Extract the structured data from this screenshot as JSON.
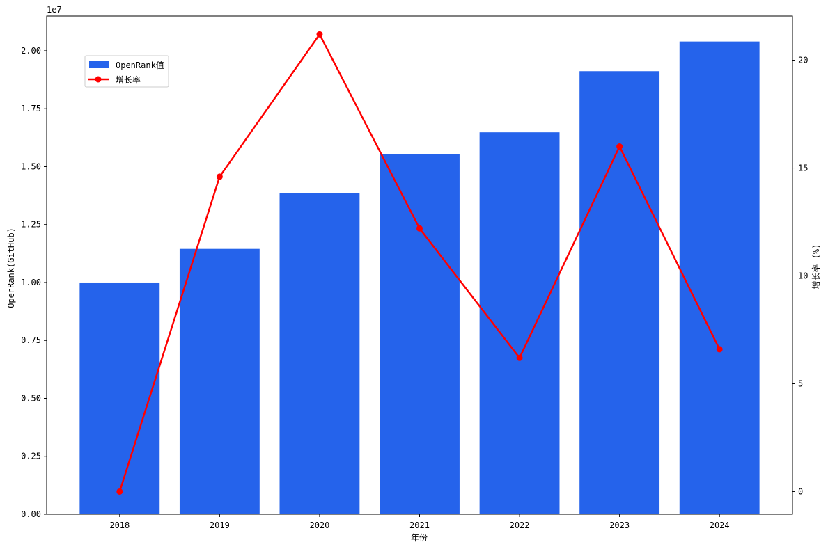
{
  "chart_data": {
    "type": "bar",
    "categories": [
      "2018",
      "2019",
      "2020",
      "2021",
      "2022",
      "2023",
      "2024"
    ],
    "xlabel": "年份",
    "ylabel_left": "OpenRank(GitHub)",
    "ylabel_right": "增长率 (%)",
    "left_axis_multiplier": "1e7",
    "left_ticks": [
      "0.00",
      "0.25",
      "0.50",
      "0.75",
      "1.00",
      "1.25",
      "1.50",
      "1.75",
      "2.00"
    ],
    "right_ticks": [
      "0",
      "5",
      "10",
      "15",
      "20"
    ],
    "ylim_left": [
      0,
      2.15
    ],
    "ylim_right": [
      -1.05,
      22.05
    ],
    "grid": false,
    "legend_position": "upper-left",
    "series": [
      {
        "name": "OpenRank值",
        "type": "bar",
        "axis": "left",
        "color": "#2563eb",
        "values": [
          1.0,
          1.145,
          1.385,
          1.555,
          1.648,
          1.912,
          2.04
        ]
      },
      {
        "name": "增长率",
        "type": "line",
        "axis": "right",
        "color": "#ff0000",
        "marker": "circle",
        "values": [
          0,
          14.6,
          21.2,
          12.2,
          6.2,
          16.0,
          6.6
        ]
      }
    ]
  }
}
